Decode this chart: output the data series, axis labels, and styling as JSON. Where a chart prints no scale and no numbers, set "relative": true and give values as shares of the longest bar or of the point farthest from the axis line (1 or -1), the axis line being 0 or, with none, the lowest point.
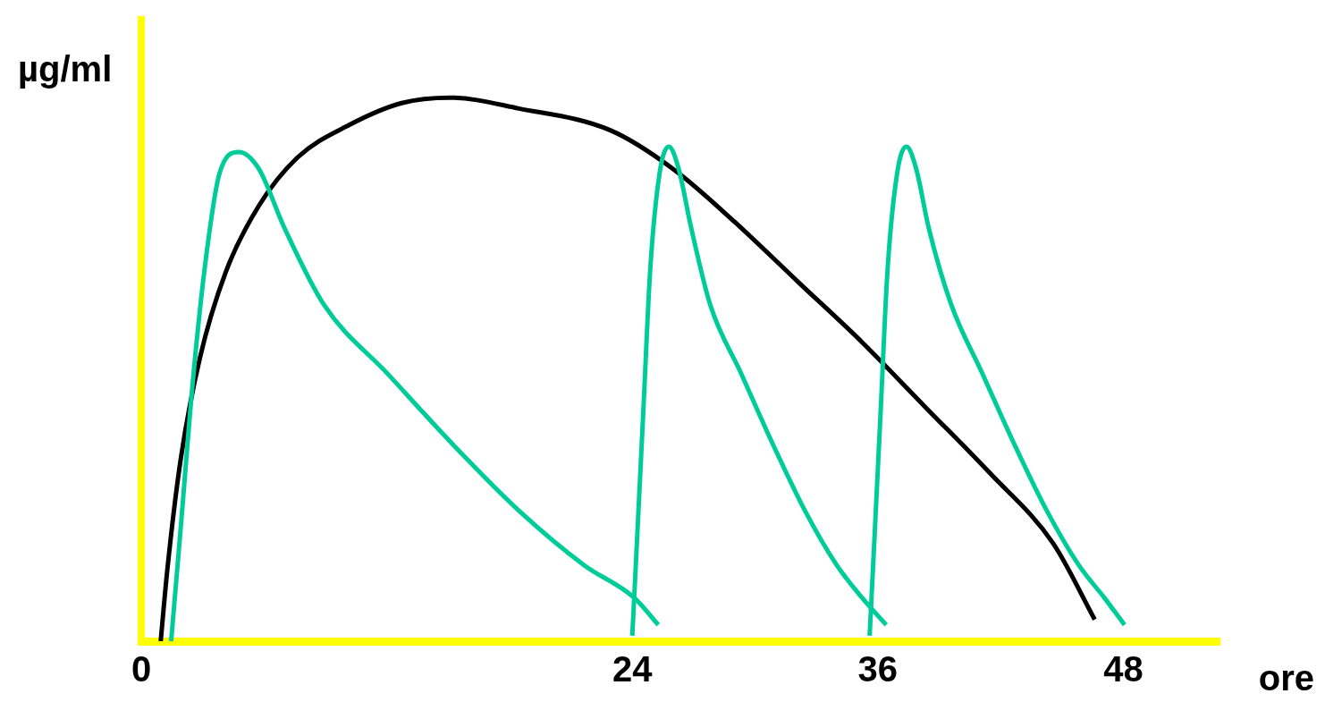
{
  "chart_data": {
    "type": "line",
    "relative": true,
    "xlabel": "ore",
    "ylabel": "µg/ml",
    "xlim": [
      0,
      52.7
    ],
    "xticks": [
      0,
      24,
      36,
      48
    ],
    "grid": false,
    "legend": false,
    "marker": "none",
    "line_style": "solid",
    "ref_lines": [
      {
        "axis": "x",
        "value": 0,
        "color": "#ffff00"
      }
    ],
    "series": [
      {
        "color": "#00cc99",
        "x": [
          1.46,
          1.91,
          2.55,
          3.18,
          3.82,
          4.77,
          5.73,
          7.0,
          8.91,
          12.09,
          15.28,
          18.46,
          21.64,
          24.09,
          25.27
        ],
        "values": [
          0.0,
          0.2,
          0.49,
          0.71,
          0.86,
          0.9,
          0.87,
          0.76,
          0.62,
          0.49,
          0.36,
          0.24,
          0.14,
          0.08,
          0.03
        ]
      },
      {
        "color": "#00cc99",
        "x": [
          24.0,
          24.25,
          24.56,
          24.87,
          25.33,
          25.79,
          26.26,
          26.88,
          27.8,
          29.35,
          30.9,
          32.44,
          33.99,
          35.23,
          36.41
        ],
        "values": [
          0.01,
          0.2,
          0.44,
          0.68,
          0.86,
          0.91,
          0.87,
          0.76,
          0.62,
          0.49,
          0.36,
          0.24,
          0.14,
          0.08,
          0.03
        ]
      },
      {
        "color": "#00cc99",
        "x": [
          35.6,
          35.85,
          36.16,
          36.47,
          36.94,
          37.4,
          37.87,
          38.49,
          39.58,
          41.14,
          42.7,
          44.26,
          45.82,
          47.07,
          48.06
        ],
        "values": [
          0.01,
          0.2,
          0.44,
          0.68,
          0.86,
          0.91,
          0.87,
          0.76,
          0.62,
          0.49,
          0.36,
          0.24,
          0.14,
          0.08,
          0.03
        ]
      },
      {
        "color": "#000000",
        "x": [
          0.95,
          1.27,
          1.91,
          2.86,
          4.14,
          5.73,
          7.64,
          10.18,
          12.73,
          15.09,
          18.46,
          22.92,
          25.95,
          29.04,
          32.13,
          35.23,
          38.34,
          41.46,
          44.57,
          46.6
        ],
        "values": [
          0.0,
          0.13,
          0.33,
          0.52,
          0.68,
          0.8,
          0.89,
          0.95,
          0.99,
          1.0,
          0.98,
          0.94,
          0.87,
          0.77,
          0.66,
          0.55,
          0.43,
          0.31,
          0.18,
          0.04
        ]
      }
    ]
  }
}
